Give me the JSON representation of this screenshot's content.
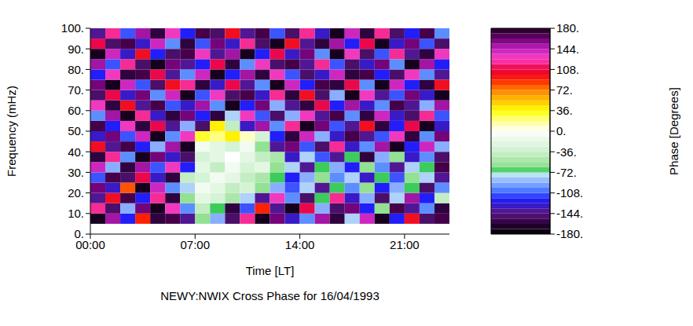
{
  "chart_data": {
    "type": "heatmap",
    "title": "NEWY:NWIX Cross Phase for 16/04/1993",
    "x_label": "Time [LT]",
    "y_label": "Frequency (mHz)",
    "x_bins": [
      0,
      1,
      2,
      3,
      4,
      5,
      6,
      7,
      8,
      9,
      10,
      11,
      12,
      13,
      14,
      15,
      16,
      17,
      18,
      19,
      20,
      21,
      22,
      23,
      24
    ],
    "y_bins": [
      5,
      10,
      15,
      20,
      25,
      30,
      35,
      40,
      45,
      50,
      55,
      60,
      65,
      70,
      75,
      80,
      85,
      90,
      95,
      100
    ],
    "cells": [
      [
        -170,
        150,
        -120,
        90,
        -160,
        170,
        -140,
        -60,
        -90,
        -150,
        120,
        -170,
        160,
        -130,
        -100,
        150,
        -160,
        -80,
        140,
        -170,
        -120,
        100,
        -150,
        170
      ],
      [
        120,
        -150,
        -90,
        160,
        -170,
        130,
        -100,
        -40,
        -70,
        -160,
        -110,
        90,
        -140,
        -170,
        110,
        -90,
        -150,
        160,
        -120,
        -60,
        170,
        -140,
        -100,
        -160
      ],
      [
        -140,
        100,
        170,
        -120,
        120,
        -160,
        -60,
        -20,
        -30,
        -50,
        -80,
        -140,
        130,
        -100,
        -150,
        -70,
        120,
        -130,
        -90,
        -150,
        -80,
        150,
        -120,
        -40
      ],
      [
        160,
        -130,
        80,
        -170,
        140,
        -100,
        -80,
        -10,
        -20,
        -40,
        -30,
        -60,
        -90,
        -110,
        -80,
        -140,
        -70,
        -100,
        -60,
        -120,
        -90,
        -70,
        -150,
        -100
      ],
      [
        -110,
        170,
        -150,
        110,
        -130,
        -160,
        -40,
        -30,
        -10,
        -20,
        -40,
        -50,
        -70,
        -120,
        -90,
        -60,
        -100,
        -80,
        -130,
        -70,
        -110,
        -60,
        -80,
        -140
      ],
      [
        140,
        -90,
        -160,
        150,
        -110,
        130,
        -120,
        -20,
        -40,
        -10,
        -30,
        -20,
        -60,
        -80,
        -140,
        -70,
        -90,
        -120,
        -60,
        -100,
        -140,
        -80,
        -70,
        170
      ],
      [
        -160,
        120,
        -100,
        -170,
        160,
        -130,
        -150,
        -30,
        -20,
        0,
        -20,
        -40,
        -50,
        -130,
        -80,
        -110,
        -140,
        -70,
        -160,
        -90,
        -60,
        -130,
        -100,
        -150
      ],
      [
        100,
        -140,
        170,
        -120,
        -90,
        150,
        -170,
        -10,
        -20,
        -30,
        -10,
        -60,
        -140,
        160,
        -110,
        -150,
        120,
        -130,
        -100,
        150,
        -170,
        -120,
        140,
        -90
      ],
      [
        -130,
        160,
        -110,
        140,
        -170,
        -100,
        130,
        30,
        20,
        40,
        10,
        -30,
        -120,
        -160,
        140,
        -90,
        -130,
        170,
        -140,
        -110,
        130,
        -160,
        -100,
        160
      ],
      [
        170,
        -120,
        130,
        -160,
        110,
        -140,
        -90,
        -150,
        40,
        -40,
        -130,
        150,
        -100,
        120,
        -170,
        160,
        -110,
        -140,
        100,
        -160,
        -120,
        110,
        -170,
        -130
      ],
      [
        -100,
        150,
        -170,
        120,
        -130,
        -160,
        160,
        -120,
        -160,
        -80,
        130,
        -110,
        -150,
        -90,
        130,
        -140,
        170,
        -100,
        -160,
        140,
        -130,
        -150,
        120,
        -110
      ],
      [
        130,
        -160,
        100,
        -140,
        170,
        -110,
        -130,
        150,
        -100,
        -170,
        -120,
        160,
        -90,
        -140,
        -160,
        110,
        -120,
        150,
        -130,
        -100,
        170,
        -140,
        -90,
        150
      ],
      [
        -150,
        110,
        -130,
        160,
        -100,
        140,
        -170,
        -110,
        130,
        -150,
        170,
        -130,
        120,
        -160,
        100,
        -150,
        -90,
        -170,
        130,
        -140,
        -110,
        160,
        -130,
        -170
      ],
      [
        160,
        -170,
        140,
        -110,
        -150,
        100,
        120,
        -160,
        -130,
        110,
        -140,
        -100,
        -170,
        140,
        -120,
        170,
        -160,
        110,
        -100,
        -170,
        140,
        -120,
        -160,
        100
      ],
      [
        -120,
        130,
        -160,
        170,
        110,
        -140,
        -100,
        140,
        -170,
        -120,
        150,
        -160,
        130,
        -110,
        -150,
        -130,
        140,
        -160,
        170,
        -120,
        -150,
        130,
        -100,
        -140
      ],
      [
        150,
        -110,
        120,
        -150,
        -170,
        160,
        -140,
        -120,
        110,
        -160,
        -100,
        130,
        -150,
        170,
        -140,
        120,
        -110,
        -150,
        -130,
        160,
        -100,
        -170,
        150,
        -120
      ],
      [
        -170,
        140,
        -130,
        100,
        -120,
        -150,
        170,
        130,
        -140,
        150,
        -170,
        -120,
        110,
        -130,
        160,
        -100,
        -170,
        130,
        -150,
        -110,
        120,
        -140,
        -160,
        130
      ],
      [
        110,
        -150,
        170,
        -130,
        140,
        -100,
        -160,
        -110,
        160,
        -130,
        120,
        -150,
        -170,
        100,
        -140,
        -160,
        150,
        -120,
        110,
        -170,
        -130,
        160,
        -110,
        -150
      ],
      [
        -140,
        120,
        -110,
        150,
        -160,
        130,
        -120,
        170,
        -150,
        100,
        -140,
        170,
        -110,
        -150,
        120,
        -130,
        -170,
        140,
        -160,
        120,
        -150,
        -120,
        170,
        -100
      ]
    ],
    "xlim": [
      0,
      24
    ],
    "xticks": [
      {
        "value": 0,
        "label": "00:00"
      },
      {
        "value": 7,
        "label": "07:00"
      },
      {
        "value": 14,
        "label": "14:00"
      },
      {
        "value": 21,
        "label": "21:00"
      }
    ],
    "ylim": [
      0,
      100
    ],
    "yticks": [
      {
        "value": 0,
        "label": "0."
      },
      {
        "value": 10,
        "label": "10."
      },
      {
        "value": 20,
        "label": "20."
      },
      {
        "value": 30,
        "label": "30."
      },
      {
        "value": 40,
        "label": "40."
      },
      {
        "value": 50,
        "label": "50."
      },
      {
        "value": 60,
        "label": "60."
      },
      {
        "value": 70,
        "label": "70."
      },
      {
        "value": 80,
        "label": "80."
      },
      {
        "value": 90,
        "label": "90."
      },
      {
        "value": 100,
        "label": "100."
      }
    ],
    "colorbar": {
      "label": "Phase [Degrees]",
      "range": [
        -180,
        180
      ],
      "ticks": [
        {
          "value": 180,
          "label": "180."
        },
        {
          "value": 144,
          "label": "144."
        },
        {
          "value": 108,
          "label": "108."
        },
        {
          "value": 72,
          "label": "72."
        },
        {
          "value": 36,
          "label": "36."
        },
        {
          "value": 0,
          "label": "0."
        },
        {
          "value": -36,
          "label": "-36."
        },
        {
          "value": -72,
          "label": "-72."
        },
        {
          "value": -108,
          "label": "-108."
        },
        {
          "value": -144,
          "label": "-144."
        },
        {
          "value": -180,
          "label": "-180."
        }
      ]
    }
  }
}
